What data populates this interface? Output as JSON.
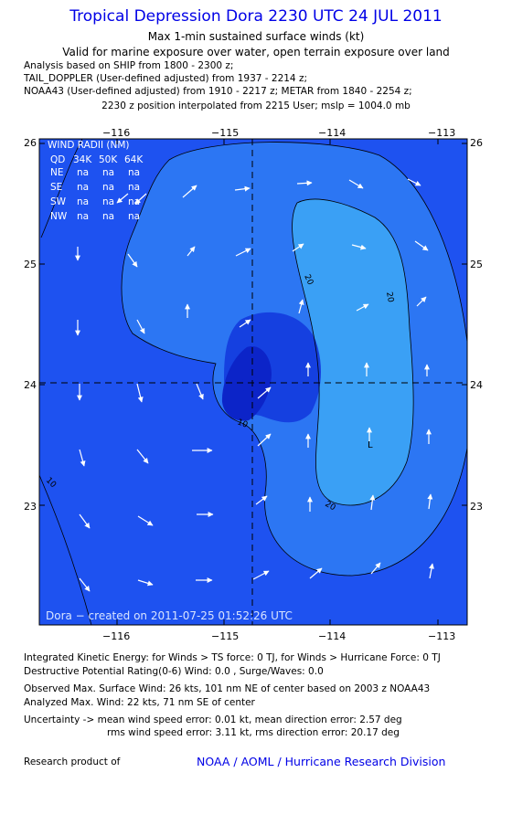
{
  "header": {
    "title": "Tropical Depression Dora 2230 UTC 24 JUL 2011",
    "subtitle": "Max 1-min sustained surface winds (kt)",
    "validity": "Valid for marine exposure over water, open terrain exposure over land",
    "analysis_lines": [
      "Analysis based on SHIP from 1800 - 2300 z;",
      "TAIL_DOPPLER (User-defined adjusted) from 1937 - 2214 z;",
      "NOAA43 (User-defined adjusted) from 1910 - 2217 z; METAR from 1840 - 2254 z;"
    ],
    "position_note": "2230 z position interpolated from 2215 User; mslp = 1004.0 mb"
  },
  "map": {
    "lon_labels": [
      "−116",
      "−115",
      "−114",
      "−113"
    ],
    "lat_labels": [
      "26",
      "25",
      "24",
      "23"
    ],
    "contour_labels": [
      "20",
      "20",
      "20",
      "10",
      "10"
    ],
    "center_marker": "L",
    "colors": {
      "lt10": "#1e52f0",
      "c10_20": "#2c76f3",
      "gt20": "#3aa0f5",
      "core_mid": "#1540e0",
      "core_inner": "#0c24c8",
      "arrow": "#ffffff",
      "contour": "#000000"
    },
    "wind_radii": {
      "title": "WIND RADII (NM)",
      "header": [
        "QD",
        "34K",
        "50K",
        "64K"
      ],
      "rows": [
        {
          "quad": "NE",
          "v34": "na",
          "v50": "na",
          "v64": "na"
        },
        {
          "quad": "SE",
          "v34": "na",
          "v50": "na",
          "v64": "na"
        },
        {
          "quad": "SW",
          "v34": "na",
          "v50": "na",
          "v64": "na"
        },
        {
          "quad": "NW",
          "v34": "na",
          "v50": "na",
          "v64": "na"
        }
      ]
    },
    "credit": "Dora − created on 2011-07-25 01:52:26 UTC"
  },
  "footer": {
    "ike": "Integrated Kinetic Energy:  for Winds > TS force: 0 TJ,  for Winds > Hurricane Force: 0 TJ",
    "dpr": "Destructive Potential Rating(0-6)   Wind: 0.0 , Surge/Waves: 0.0",
    "obs_max": "Observed Max. Surface Wind: 26 kts, 101 nm NE of center based on 2003 z NOAA43",
    "ana_max": "Analyzed Max. Wind: 22 kts, 71 nm SE of center",
    "uncert1": "Uncertainty -> mean wind speed error: 0.01 kt,   mean direction error: 2.57 deg",
    "uncert2": "rms wind speed error: 3.11 kt,   rms direction error: 20.17 deg",
    "research": "Research product of",
    "org": "NOAA / AOML / Hurricane Research Division"
  }
}
